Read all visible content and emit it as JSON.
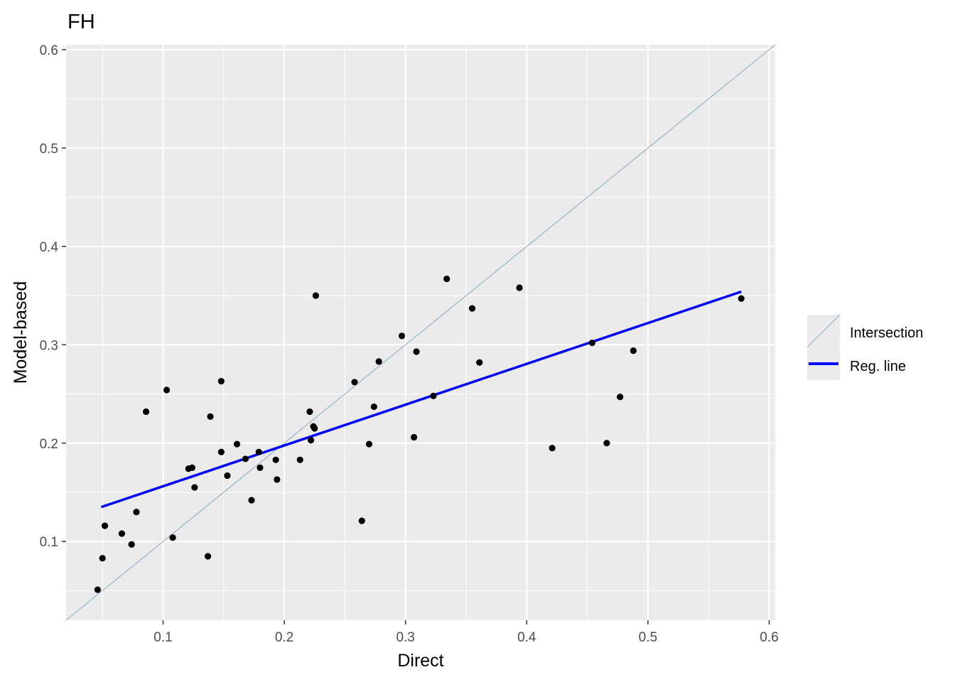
{
  "chart_data": {
    "type": "scatter",
    "title": "FH",
    "xlabel": "Direct",
    "ylabel": "Model-based",
    "xlim": [
      0.02,
      0.605
    ],
    "ylim": [
      0.02,
      0.605
    ],
    "xticks": [
      0.1,
      0.2,
      0.3,
      0.4,
      0.5,
      0.6
    ],
    "yticks": [
      0.1,
      0.2,
      0.3,
      0.4,
      0.5,
      0.6
    ],
    "grid": true,
    "legend_position": "right",
    "colors": {
      "panel": "#ebebeb",
      "grid": "#ffffff",
      "points": "#000000",
      "intersection": "#9dbdcb",
      "regression": "#0000ff"
    },
    "legend": [
      {
        "label": "Intersection",
        "type": "intersection"
      },
      {
        "label": "Reg. line",
        "type": "regression"
      }
    ],
    "intersection_line": {
      "slope": 1,
      "intercept": 0
    },
    "regression_line": {
      "x": [
        0.049,
        0.577
      ],
      "y": [
        0.135,
        0.354
      ]
    },
    "points": [
      {
        "x": 0.046,
        "y": 0.051
      },
      {
        "x": 0.05,
        "y": 0.083
      },
      {
        "x": 0.052,
        "y": 0.116
      },
      {
        "x": 0.066,
        "y": 0.108
      },
      {
        "x": 0.074,
        "y": 0.097
      },
      {
        "x": 0.078,
        "y": 0.13
      },
      {
        "x": 0.086,
        "y": 0.232
      },
      {
        "x": 0.103,
        "y": 0.254
      },
      {
        "x": 0.108,
        "y": 0.104
      },
      {
        "x": 0.121,
        "y": 0.174
      },
      {
        "x": 0.124,
        "y": 0.175
      },
      {
        "x": 0.126,
        "y": 0.155
      },
      {
        "x": 0.137,
        "y": 0.085
      },
      {
        "x": 0.139,
        "y": 0.227
      },
      {
        "x": 0.148,
        "y": 0.263
      },
      {
        "x": 0.148,
        "y": 0.191
      },
      {
        "x": 0.153,
        "y": 0.167
      },
      {
        "x": 0.161,
        "y": 0.199
      },
      {
        "x": 0.168,
        "y": 0.184
      },
      {
        "x": 0.173,
        "y": 0.142
      },
      {
        "x": 0.179,
        "y": 0.191
      },
      {
        "x": 0.18,
        "y": 0.175
      },
      {
        "x": 0.193,
        "y": 0.183
      },
      {
        "x": 0.194,
        "y": 0.163
      },
      {
        "x": 0.213,
        "y": 0.183
      },
      {
        "x": 0.221,
        "y": 0.232
      },
      {
        "x": 0.222,
        "y": 0.203
      },
      {
        "x": 0.224,
        "y": 0.217
      },
      {
        "x": 0.225,
        "y": 0.215
      },
      {
        "x": 0.226,
        "y": 0.35
      },
      {
        "x": 0.258,
        "y": 0.262
      },
      {
        "x": 0.264,
        "y": 0.121
      },
      {
        "x": 0.27,
        "y": 0.199
      },
      {
        "x": 0.274,
        "y": 0.237
      },
      {
        "x": 0.278,
        "y": 0.283
      },
      {
        "x": 0.297,
        "y": 0.309
      },
      {
        "x": 0.307,
        "y": 0.206
      },
      {
        "x": 0.309,
        "y": 0.293
      },
      {
        "x": 0.323,
        "y": 0.248
      },
      {
        "x": 0.334,
        "y": 0.367
      },
      {
        "x": 0.355,
        "y": 0.337
      },
      {
        "x": 0.361,
        "y": 0.282
      },
      {
        "x": 0.394,
        "y": 0.358
      },
      {
        "x": 0.421,
        "y": 0.195
      },
      {
        "x": 0.454,
        "y": 0.302
      },
      {
        "x": 0.466,
        "y": 0.2
      },
      {
        "x": 0.477,
        "y": 0.247
      },
      {
        "x": 0.488,
        "y": 0.294
      },
      {
        "x": 0.577,
        "y": 0.347
      }
    ]
  }
}
